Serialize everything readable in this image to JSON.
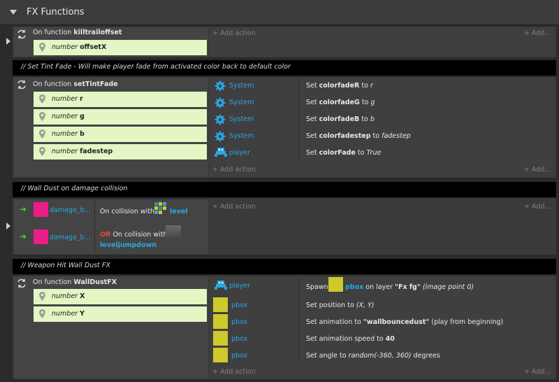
{
  "header": {
    "title": "FX Functions"
  },
  "ui": {
    "add_action": "+ Add action",
    "add_short": "+ Add...",
    "number": "number",
    "on_function": "On function",
    "or": "OR",
    "on_collision_with": "On collision with"
  },
  "ev1": {
    "function": "killtrailoffset",
    "params": [
      "offsetX"
    ]
  },
  "c1": {
    "text": "//   Set Tint Fade - Will make player fade from activated color back to default color"
  },
  "ev2": {
    "function": "setTintFade",
    "params": [
      "r",
      "g",
      "b",
      "fadestep"
    ],
    "actions": [
      {
        "object": "System",
        "set": "Set",
        "var": "colorfadeR",
        "to": "to",
        "val": "r"
      },
      {
        "object": "System",
        "set": "Set",
        "var": "colorfadeG",
        "to": "to",
        "val": "g"
      },
      {
        "object": "System",
        "set": "Set",
        "var": "colorfadeB",
        "to": "to",
        "val": "b"
      },
      {
        "object": "System",
        "set": "Set",
        "var": "colorfadestep",
        "to": "to",
        "val": "fadestep"
      },
      {
        "object": "player",
        "set": "Set",
        "var": "colorFade",
        "to": "to",
        "val": "True"
      }
    ]
  },
  "c2": {
    "text": "//   Wall Dust on damage collision"
  },
  "ev3": {
    "object1": "damage_b...",
    "object2": "damage_b...",
    "target1": "level",
    "target2": "leveljumpdown"
  },
  "c3": {
    "text": "//   Weapon Hit Wall Dust FX"
  },
  "ev4": {
    "function": "WallDustFX",
    "params": [
      "X",
      "Y"
    ],
    "actions": [
      {
        "object": "player",
        "p1": "Spawn",
        "p2": "pbox",
        "p3": "on layer",
        "p4": "\"Fx fg\"",
        "p5": "(image point 0)"
      },
      {
        "object": "pbox",
        "p1": "Set position to",
        "p2": "(X, Y)"
      },
      {
        "object": "pbox",
        "p1": "Set animation to",
        "p2": "\"wallbouncedust\"",
        "p3": "(play from beginning)"
      },
      {
        "object": "pbox",
        "p1": "Set animation speed to",
        "p2": "40"
      },
      {
        "object": "pbox",
        "p1": "Set angle to",
        "p2": "random(-360, 360)",
        "p3": "degrees"
      }
    ]
  },
  "colors": {
    "accent": "#2aa7e0",
    "param_bg": "#e3f6c4",
    "swatch_yellow": "#cdca2a",
    "swatch_pink": "#ea1e8a"
  }
}
